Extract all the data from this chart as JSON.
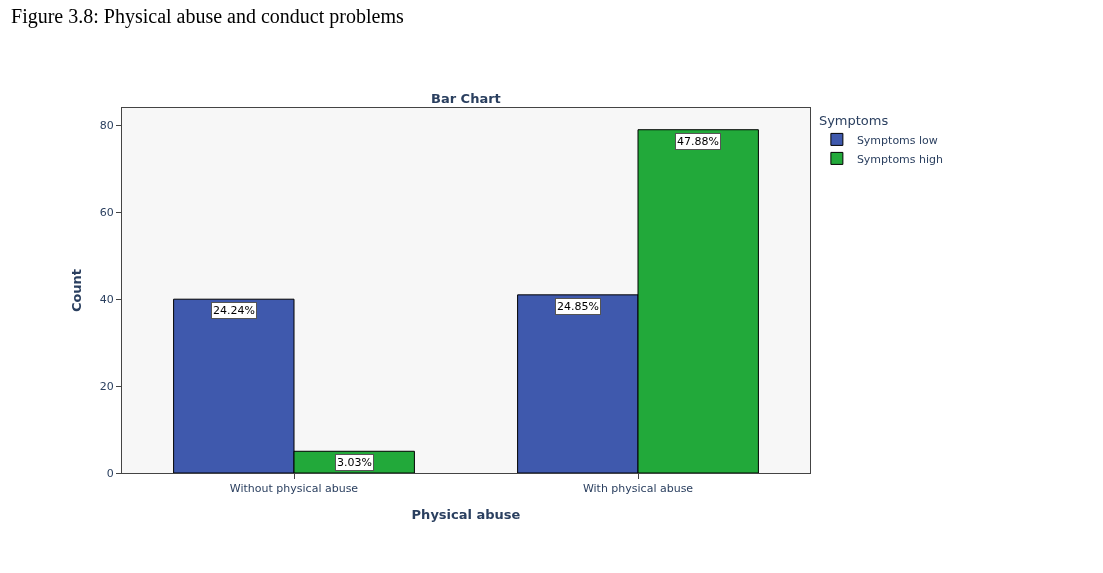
{
  "chart_data": {
    "type": "bar",
    "title": "Figure 3.8: Physical abuse and conduct problems",
    "subtitle": "Bar Chart",
    "xlabel": "Physical abuse",
    "ylabel": "Count",
    "legend_title": "Symptoms",
    "categories": [
      "Without physical abuse",
      "With physical abuse"
    ],
    "series": [
      {
        "name": "Symptoms low",
        "color": "#3f59ad",
        "values": [
          40,
          41
        ]
      },
      {
        "name": "Symptoms high",
        "color": "#22a93a",
        "values": [
          5,
          79
        ]
      }
    ],
    "annotations": [
      "24.24%",
      "3.03%",
      "24.85%",
      "47.88%"
    ],
    "ylim": [
      0,
      84
    ],
    "yticks": [
      0,
      20,
      40,
      60,
      80
    ],
    "grid": false,
    "legend": "top right"
  }
}
